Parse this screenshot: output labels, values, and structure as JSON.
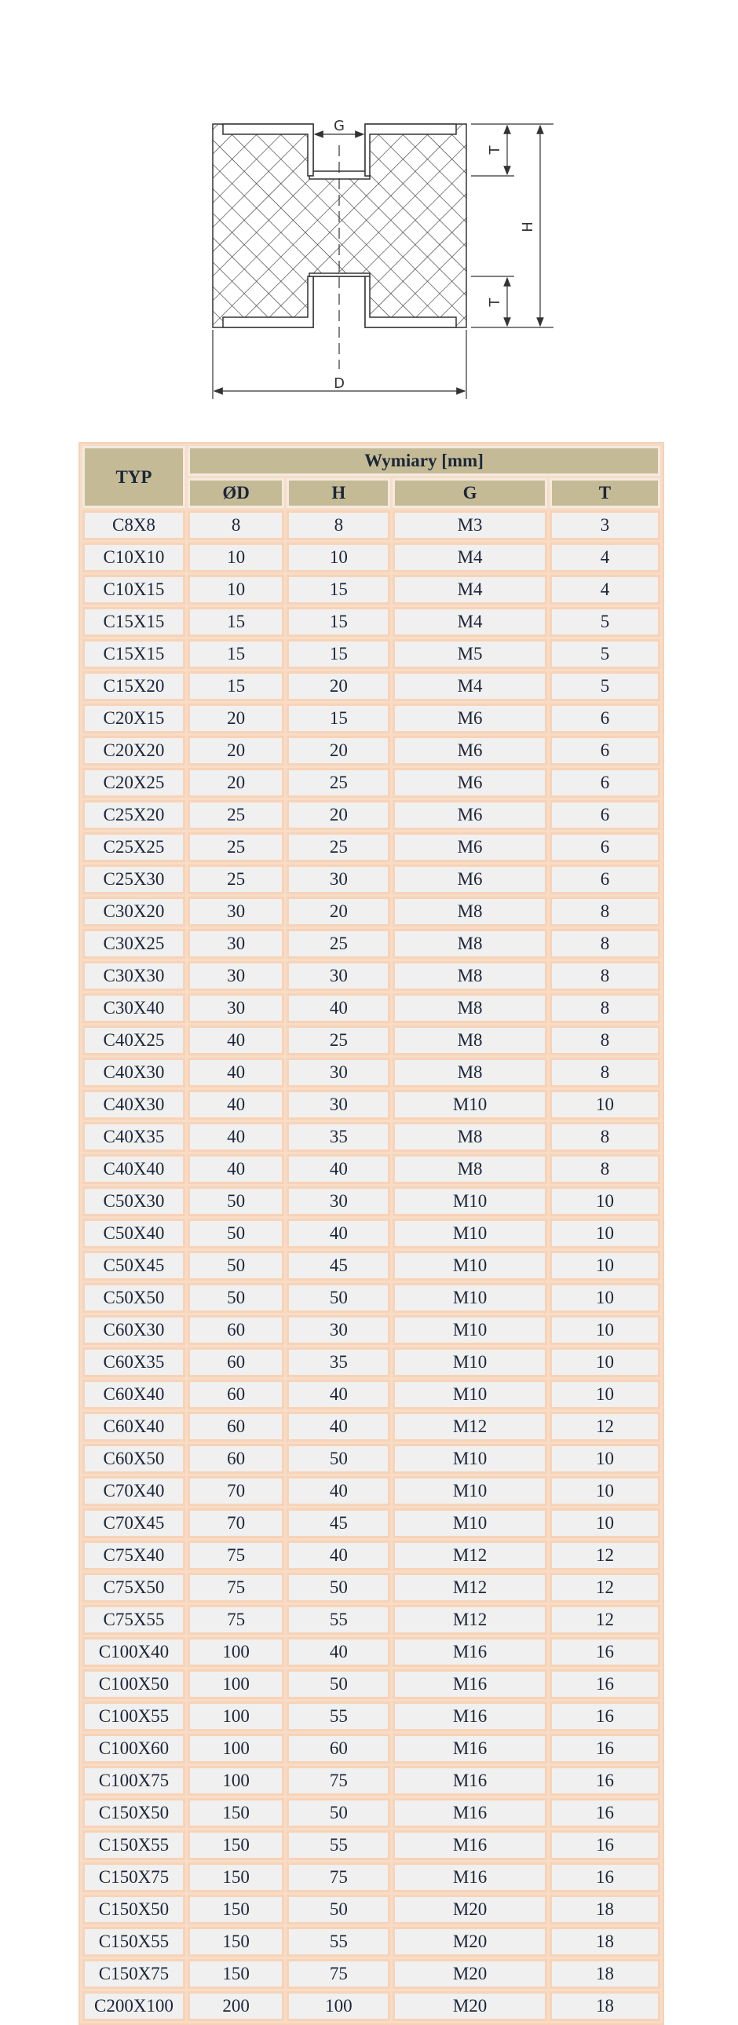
{
  "diagram": {
    "labels": {
      "g": "G",
      "t_top": "T",
      "t_bottom": "T",
      "h": "H",
      "d": "D"
    }
  },
  "table": {
    "header": {
      "typ": "TYP",
      "group": "Wymiary [mm]",
      "columns": [
        "ØD",
        "H",
        "G",
        "T"
      ]
    },
    "colors": {
      "header_bg": "#c4bb96",
      "cell_bg": "#f0f0f0",
      "border": "#f7d3b8"
    },
    "rows": [
      [
        "C8X8",
        "8",
        "8",
        "M3",
        "3"
      ],
      [
        "C10X10",
        "10",
        "10",
        "M4",
        "4"
      ],
      [
        "C10X15",
        "10",
        "15",
        "M4",
        "4"
      ],
      [
        "C15X15",
        "15",
        "15",
        "M4",
        "5"
      ],
      [
        "C15X15",
        "15",
        "15",
        "M5",
        "5"
      ],
      [
        "C15X20",
        "15",
        "20",
        "M4",
        "5"
      ],
      [
        "C20X15",
        "20",
        "15",
        "M6",
        "6"
      ],
      [
        "C20X20",
        "20",
        "20",
        "M6",
        "6"
      ],
      [
        "C20X25",
        "20",
        "25",
        "M6",
        "6"
      ],
      [
        "C25X20",
        "25",
        "20",
        "M6",
        "6"
      ],
      [
        "C25X25",
        "25",
        "25",
        "M6",
        "6"
      ],
      [
        "C25X30",
        "25",
        "30",
        "M6",
        "6"
      ],
      [
        "C30X20",
        "30",
        "20",
        "M8",
        "8"
      ],
      [
        "C30X25",
        "30",
        "25",
        "M8",
        "8"
      ],
      [
        "C30X30",
        "30",
        "30",
        "M8",
        "8"
      ],
      [
        "C30X40",
        "30",
        "40",
        "M8",
        "8"
      ],
      [
        "C40X25",
        "40",
        "25",
        "M8",
        "8"
      ],
      [
        "C40X30",
        "40",
        "30",
        "M8",
        "8"
      ],
      [
        "C40X30",
        "40",
        "30",
        "M10",
        "10"
      ],
      [
        "C40X35",
        "40",
        "35",
        "M8",
        "8"
      ],
      [
        "C40X40",
        "40",
        "40",
        "M8",
        "8"
      ],
      [
        "C50X30",
        "50",
        "30",
        "M10",
        "10"
      ],
      [
        "C50X40",
        "50",
        "40",
        "M10",
        "10"
      ],
      [
        "C50X45",
        "50",
        "45",
        "M10",
        "10"
      ],
      [
        "C50X50",
        "50",
        "50",
        "M10",
        "10"
      ],
      [
        "C60X30",
        "60",
        "30",
        "M10",
        "10"
      ],
      [
        "C60X35",
        "60",
        "35",
        "M10",
        "10"
      ],
      [
        "C60X40",
        "60",
        "40",
        "M10",
        "10"
      ],
      [
        "C60X40",
        "60",
        "40",
        "M12",
        "12"
      ],
      [
        "C60X50",
        "60",
        "50",
        "M10",
        "10"
      ],
      [
        "C70X40",
        "70",
        "40",
        "M10",
        "10"
      ],
      [
        "C70X45",
        "70",
        "45",
        "M10",
        "10"
      ],
      [
        "C75X40",
        "75",
        "40",
        "M12",
        "12"
      ],
      [
        "C75X50",
        "75",
        "50",
        "M12",
        "12"
      ],
      [
        "C75X55",
        "75",
        "55",
        "M12",
        "12"
      ],
      [
        "C100X40",
        "100",
        "40",
        "M16",
        "16"
      ],
      [
        "C100X50",
        "100",
        "50",
        "M16",
        "16"
      ],
      [
        "C100X55",
        "100",
        "55",
        "M16",
        "16"
      ],
      [
        "C100X60",
        "100",
        "60",
        "M16",
        "16"
      ],
      [
        "C100X75",
        "100",
        "75",
        "M16",
        "16"
      ],
      [
        "C150X50",
        "150",
        "50",
        "M16",
        "16"
      ],
      [
        "C150X55",
        "150",
        "55",
        "M16",
        "16"
      ],
      [
        "C150X75",
        "150",
        "75",
        "M16",
        "16"
      ],
      [
        "C150X50",
        "150",
        "50",
        "M20",
        "18"
      ],
      [
        "C150X55",
        "150",
        "55",
        "M20",
        "18"
      ],
      [
        "C150X75",
        "150",
        "75",
        "M20",
        "18"
      ],
      [
        "C200X100",
        "200",
        "100",
        "M20",
        "18"
      ]
    ]
  }
}
